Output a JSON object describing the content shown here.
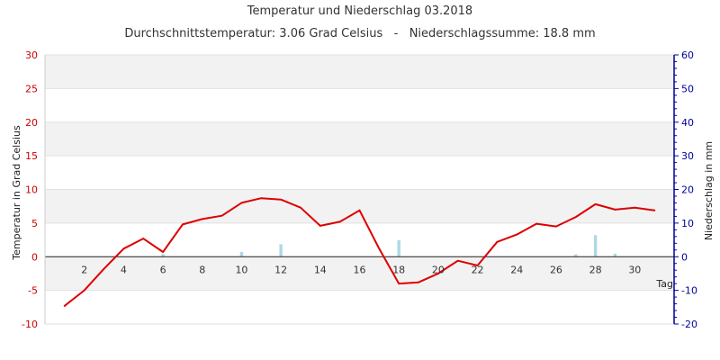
{
  "chart_data": {
    "type": "line",
    "title": "Temperatur und Niederschlag 03.2018",
    "subtitle": "Durchschnittstemperatur: 3.06 Grad Celsius   -   Niederschlagssumme: 18.8 mm",
    "xlabel": "Tag",
    "ylabel": "Temperatur in Grad Celsius",
    "y2label": "Niederschlag in mm",
    "xlim": [
      0,
      32
    ],
    "xticks": [
      2,
      4,
      6,
      8,
      10,
      12,
      14,
      16,
      18,
      20,
      22,
      24,
      26,
      28,
      30
    ],
    "ylim": [
      -10,
      30
    ],
    "yticks": [
      -10,
      -5,
      0,
      5,
      10,
      15,
      20,
      25,
      30
    ],
    "y2lim": [
      -20,
      60
    ],
    "y2ticks": [
      -20,
      -10,
      0,
      10,
      20,
      30,
      40,
      50,
      60
    ],
    "grid": true,
    "colors": {
      "temperature": "#dd0000",
      "precipitation": "#add8e6",
      "left_axis": "#cc0000",
      "right_axis": "#000099",
      "band": "#f2f2f2",
      "gridline": "#e2e2e2"
    },
    "series": [
      {
        "name": "Temperatur",
        "axis": "left",
        "kind": "line",
        "x": [
          1,
          2,
          3,
          4,
          5,
          6,
          7,
          8,
          9,
          10,
          11,
          12,
          13,
          14,
          15,
          16,
          17,
          18,
          19,
          20,
          21,
          22,
          23,
          24,
          25,
          26,
          27,
          28,
          29,
          30,
          31
        ],
        "values": [
          -7.3,
          -5.0,
          -1.8,
          1.2,
          2.7,
          0.7,
          4.8,
          5.6,
          6.1,
          8.0,
          8.7,
          8.5,
          7.3,
          4.6,
          5.2,
          6.9,
          1.2,
          -4.0,
          -3.8,
          -2.5,
          -0.6,
          -1.3,
          2.2,
          3.3,
          4.9,
          4.5,
          5.9,
          7.8,
          7.0,
          7.3,
          6.9
        ]
      },
      {
        "name": "Niederschlag",
        "axis": "right",
        "kind": "bar",
        "x": [
          6,
          10,
          12,
          18,
          27,
          28,
          29
        ],
        "values": [
          0.8,
          1.4,
          3.7,
          4.9,
          0.7,
          6.4,
          0.9
        ]
      }
    ]
  }
}
